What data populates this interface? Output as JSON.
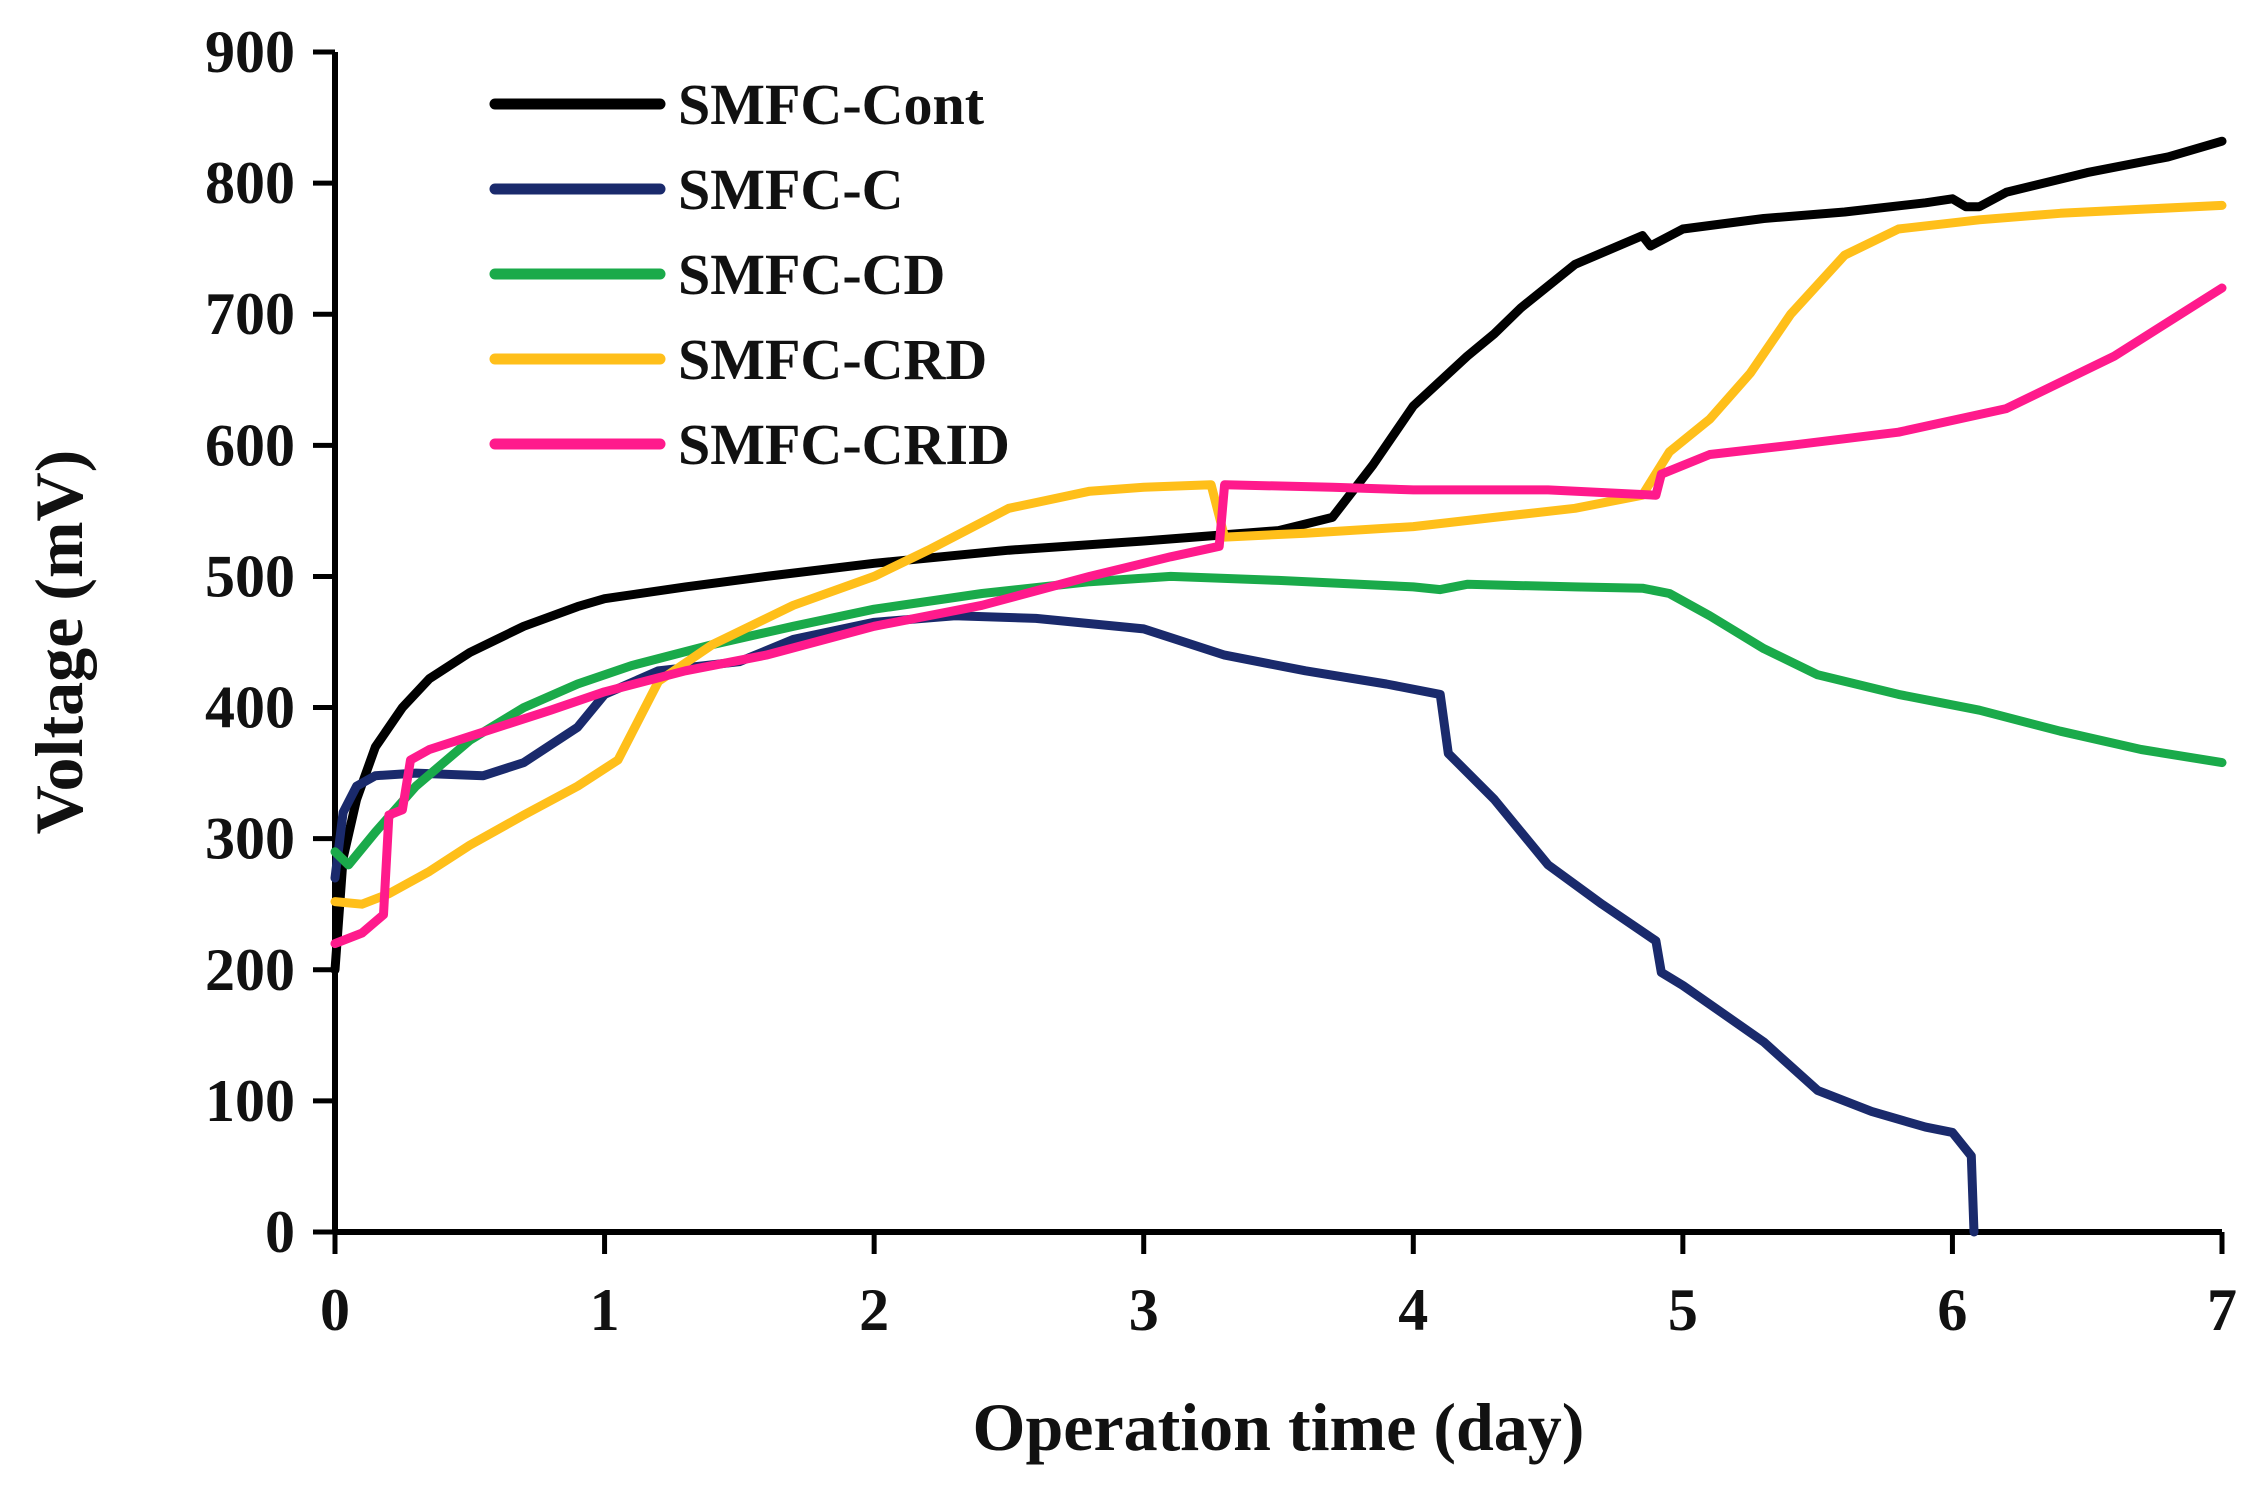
{
  "chart_data": {
    "type": "line",
    "title": "",
    "xlabel": "Operation time (day)",
    "ylabel": "Voltage (mV)",
    "xlim": [
      0,
      7
    ],
    "ylim": [
      0,
      900
    ],
    "xticks": [
      0,
      1,
      2,
      3,
      4,
      5,
      6,
      7
    ],
    "yticks": [
      0,
      100,
      200,
      300,
      400,
      500,
      600,
      700,
      800,
      900
    ],
    "legend_position": "top-left",
    "grid": false,
    "series": [
      {
        "name": "SMFC-Cont",
        "color": "#000000",
        "points": [
          [
            0,
            200
          ],
          [
            0.03,
            285
          ],
          [
            0.08,
            330
          ],
          [
            0.15,
            370
          ],
          [
            0.25,
            400
          ],
          [
            0.35,
            422
          ],
          [
            0.5,
            442
          ],
          [
            0.7,
            462
          ],
          [
            0.9,
            477
          ],
          [
            1.0,
            483
          ],
          [
            1.3,
            492
          ],
          [
            1.6,
            500
          ],
          [
            2.0,
            510
          ],
          [
            2.5,
            520
          ],
          [
            3.0,
            527
          ],
          [
            3.5,
            535
          ],
          [
            3.7,
            545
          ],
          [
            3.85,
            585
          ],
          [
            4.0,
            630
          ],
          [
            4.2,
            668
          ],
          [
            4.3,
            685
          ],
          [
            4.4,
            705
          ],
          [
            4.6,
            738
          ],
          [
            4.85,
            760
          ],
          [
            4.88,
            752
          ],
          [
            5.0,
            765
          ],
          [
            5.3,
            773
          ],
          [
            5.6,
            778
          ],
          [
            5.9,
            785
          ],
          [
            6.0,
            788
          ],
          [
            6.05,
            782
          ],
          [
            6.1,
            782
          ],
          [
            6.2,
            793
          ],
          [
            6.5,
            808
          ],
          [
            6.8,
            820
          ],
          [
            7.0,
            832
          ]
        ]
      },
      {
        "name": "SMFC-C",
        "color": "#1a2a6c",
        "points": [
          [
            0,
            270
          ],
          [
            0.03,
            320
          ],
          [
            0.08,
            340
          ],
          [
            0.15,
            348
          ],
          [
            0.3,
            350
          ],
          [
            0.55,
            348
          ],
          [
            0.7,
            358
          ],
          [
            0.9,
            385
          ],
          [
            1.0,
            410
          ],
          [
            1.2,
            428
          ],
          [
            1.5,
            435
          ],
          [
            1.7,
            452
          ],
          [
            2.0,
            465
          ],
          [
            2.3,
            470
          ],
          [
            2.6,
            468
          ],
          [
            3.0,
            460
          ],
          [
            3.3,
            440
          ],
          [
            3.6,
            428
          ],
          [
            3.9,
            418
          ],
          [
            4.1,
            410
          ],
          [
            4.13,
            365
          ],
          [
            4.3,
            330
          ],
          [
            4.5,
            280
          ],
          [
            4.7,
            250
          ],
          [
            4.9,
            222
          ],
          [
            4.92,
            198
          ],
          [
            5.0,
            188
          ],
          [
            5.3,
            145
          ],
          [
            5.5,
            108
          ],
          [
            5.7,
            92
          ],
          [
            5.9,
            80
          ],
          [
            6.0,
            76
          ],
          [
            6.07,
            58
          ],
          [
            6.08,
            0
          ]
        ]
      },
      {
        "name": "SMFC-CD",
        "color": "#1aaa4a",
        "points": [
          [
            0,
            290
          ],
          [
            0.05,
            280
          ],
          [
            0.15,
            305
          ],
          [
            0.3,
            340
          ],
          [
            0.5,
            375
          ],
          [
            0.7,
            400
          ],
          [
            0.9,
            418
          ],
          [
            1.1,
            432
          ],
          [
            1.4,
            448
          ],
          [
            1.7,
            462
          ],
          [
            2.0,
            475
          ],
          [
            2.4,
            487
          ],
          [
            2.8,
            496
          ],
          [
            3.1,
            500
          ],
          [
            3.5,
            497
          ],
          [
            4.0,
            492
          ],
          [
            4.1,
            490
          ],
          [
            4.2,
            494
          ],
          [
            4.6,
            492
          ],
          [
            4.85,
            491
          ],
          [
            4.95,
            487
          ],
          [
            5.1,
            470
          ],
          [
            5.3,
            445
          ],
          [
            5.5,
            425
          ],
          [
            5.8,
            410
          ],
          [
            6.1,
            398
          ],
          [
            6.4,
            382
          ],
          [
            6.7,
            368
          ],
          [
            7.0,
            358
          ]
        ]
      },
      {
        "name": "SMFC-CRD",
        "color": "#ffbf1a",
        "points": [
          [
            0,
            252
          ],
          [
            0.1,
            250
          ],
          [
            0.2,
            258
          ],
          [
            0.35,
            275
          ],
          [
            0.5,
            295
          ],
          [
            0.7,
            318
          ],
          [
            0.9,
            340
          ],
          [
            1.05,
            360
          ],
          [
            1.2,
            420
          ],
          [
            1.4,
            448
          ],
          [
            1.7,
            478
          ],
          [
            2.0,
            500
          ],
          [
            2.2,
            520
          ],
          [
            2.5,
            552
          ],
          [
            2.8,
            565
          ],
          [
            3.0,
            568
          ],
          [
            3.25,
            570
          ],
          [
            3.3,
            530
          ],
          [
            3.6,
            533
          ],
          [
            4.0,
            538
          ],
          [
            4.3,
            545
          ],
          [
            4.6,
            552
          ],
          [
            4.85,
            562
          ],
          [
            4.95,
            595
          ],
          [
            5.1,
            620
          ],
          [
            5.25,
            655
          ],
          [
            5.4,
            700
          ],
          [
            5.6,
            745
          ],
          [
            5.8,
            765
          ],
          [
            6.1,
            772
          ],
          [
            6.4,
            777
          ],
          [
            6.7,
            780
          ],
          [
            7.0,
            783
          ]
        ]
      },
      {
        "name": "SMFC-CRID",
        "color": "#ff1a8c",
        "points": [
          [
            0,
            220
          ],
          [
            0.1,
            228
          ],
          [
            0.18,
            242
          ],
          [
            0.2,
            318
          ],
          [
            0.25,
            322
          ],
          [
            0.28,
            360
          ],
          [
            0.35,
            368
          ],
          [
            0.5,
            378
          ],
          [
            0.8,
            398
          ],
          [
            1.0,
            412
          ],
          [
            1.3,
            428
          ],
          [
            1.6,
            440
          ],
          [
            2.0,
            462
          ],
          [
            2.4,
            478
          ],
          [
            2.8,
            500
          ],
          [
            3.1,
            515
          ],
          [
            3.28,
            523
          ],
          [
            3.3,
            570
          ],
          [
            3.7,
            568
          ],
          [
            4.0,
            566
          ],
          [
            4.5,
            566
          ],
          [
            4.9,
            562
          ],
          [
            4.92,
            578
          ],
          [
            5.1,
            593
          ],
          [
            5.4,
            600
          ],
          [
            5.8,
            610
          ],
          [
            6.2,
            628
          ],
          [
            6.6,
            668
          ],
          [
            7.0,
            720
          ]
        ]
      }
    ]
  }
}
